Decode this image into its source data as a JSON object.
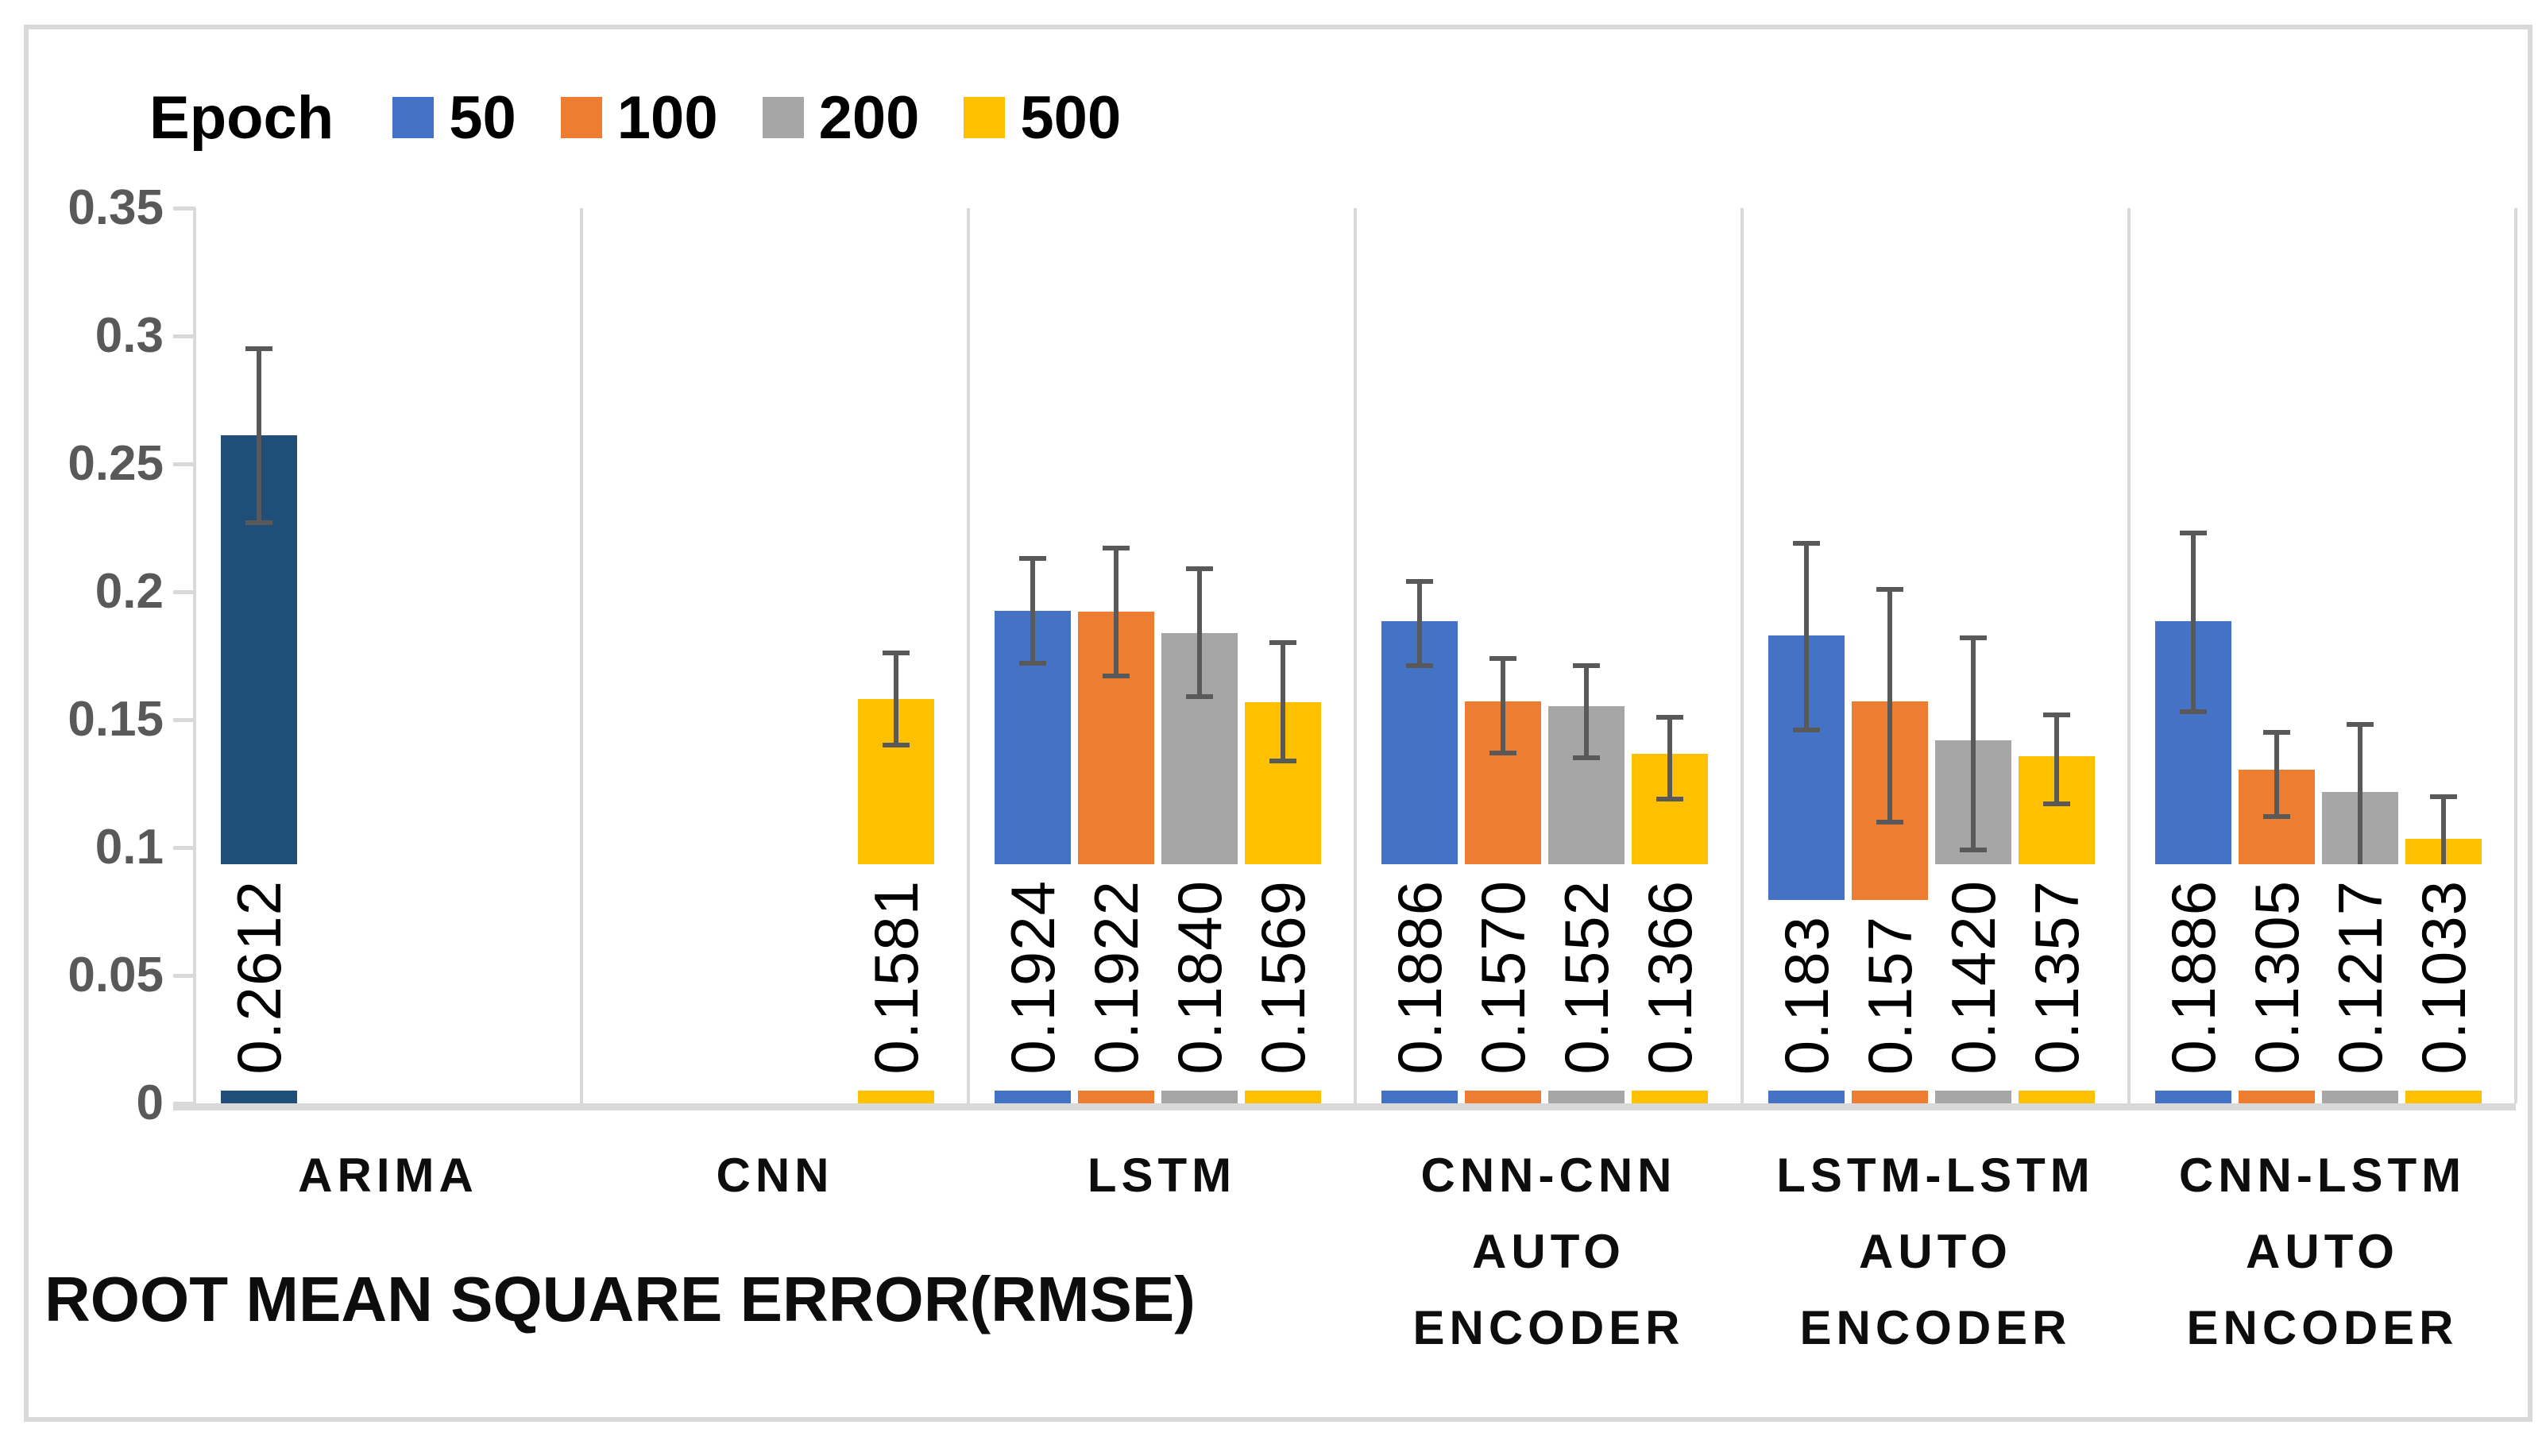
{
  "chart_data": {
    "type": "bar",
    "title": "",
    "xlabel": "ROOT MEAN SQUARE ERROR(RMSE)",
    "ylabel": "",
    "ylim": [
      0,
      0.35
    ],
    "y_tick_labels": [
      "0",
      "0.05",
      "0.1",
      "0.15",
      "0.2",
      "0.25",
      "0.3",
      "0.35"
    ],
    "grid": "no horizontal gridlines; light vertical separators between category groups",
    "legend": {
      "title": "Epoch",
      "position": "top-left",
      "entries": [
        {
          "label": "50",
          "color": "#4472C4"
        },
        {
          "label": "100",
          "color": "#ED7D31"
        },
        {
          "label": "200",
          "color": "#A6A6A6"
        },
        {
          "label": "500",
          "color": "#FFC000"
        }
      ]
    },
    "colors": {
      "arima_bar": "#1F4E79",
      "error_bar": "#595959",
      "axis_lines": "#D9D9D9",
      "tick_labels": "#595959",
      "data_labels": "#000000"
    },
    "groups": [
      {
        "category": "ARIMA",
        "label_lines": [
          "ARIMA"
        ],
        "bars": [
          {
            "slot": 0,
            "epoch": "ARIMA",
            "value": 0.2612,
            "label": "0.2612",
            "color": "#1F4E79",
            "err_low": 0.227,
            "err_high": 0.295
          }
        ]
      },
      {
        "category": "CNN",
        "label_lines": [
          "CNN"
        ],
        "bars": [
          {
            "slot": 3,
            "epoch": "500",
            "value": 0.1581,
            "label": "0.1581",
            "color": "#FFC000",
            "err_low": 0.14,
            "err_high": 0.176
          }
        ]
      },
      {
        "category": "LSTM",
        "label_lines": [
          "LSTM"
        ],
        "bars": [
          {
            "slot": 0,
            "epoch": "50",
            "value": 0.1924,
            "label": "0.1924",
            "color": "#4472C4",
            "err_low": 0.172,
            "err_high": 0.213
          },
          {
            "slot": 1,
            "epoch": "100",
            "value": 0.1922,
            "label": "0.1922",
            "color": "#ED7D31",
            "err_low": 0.167,
            "err_high": 0.217
          },
          {
            "slot": 2,
            "epoch": "200",
            "value": 0.184,
            "label": "0.1840",
            "color": "#A6A6A6",
            "err_low": 0.159,
            "err_high": 0.209
          },
          {
            "slot": 3,
            "epoch": "500",
            "value": 0.1569,
            "label": "0.1569",
            "color": "#FFC000",
            "err_low": 0.134,
            "err_high": 0.18
          }
        ]
      },
      {
        "category": "CNN-CNN AUTO ENCODER",
        "label_lines": [
          "CNN-CNN",
          "AUTO",
          "ENCODER"
        ],
        "bars": [
          {
            "slot": 0,
            "epoch": "50",
            "value": 0.1886,
            "label": "0.1886",
            "color": "#4472C4",
            "err_low": 0.171,
            "err_high": 0.204
          },
          {
            "slot": 1,
            "epoch": "100",
            "value": 0.157,
            "label": "0.1570",
            "color": "#ED7D31",
            "err_low": 0.137,
            "err_high": 0.174
          },
          {
            "slot": 2,
            "epoch": "200",
            "value": 0.1552,
            "label": "0.1552",
            "color": "#A6A6A6",
            "err_low": 0.135,
            "err_high": 0.171
          },
          {
            "slot": 3,
            "epoch": "500",
            "value": 0.1366,
            "label": "0.1366",
            "color": "#FFC000",
            "err_low": 0.119,
            "err_high": 0.151
          }
        ]
      },
      {
        "category": "LSTM-LSTM AUTO ENCODER",
        "label_lines": [
          "LSTM-LSTM",
          "AUTO",
          "ENCODER"
        ],
        "bars": [
          {
            "slot": 0,
            "epoch": "50",
            "value": 0.183,
            "label": "0.183",
            "color": "#4472C4",
            "err_low": 0.146,
            "err_high": 0.219
          },
          {
            "slot": 1,
            "epoch": "100",
            "value": 0.157,
            "label": "0.157",
            "color": "#ED7D31",
            "err_low": 0.11,
            "err_high": 0.201
          },
          {
            "slot": 2,
            "epoch": "200",
            "value": 0.142,
            "label": "0.1420",
            "color": "#A6A6A6",
            "err_low": 0.099,
            "err_high": 0.182
          },
          {
            "slot": 3,
            "epoch": "500",
            "value": 0.1357,
            "label": "0.1357",
            "color": "#FFC000",
            "err_low": 0.117,
            "err_high": 0.152
          }
        ]
      },
      {
        "category": "CNN-LSTM AUTO ENCODER",
        "label_lines": [
          "CNN-LSTM",
          "AUTO",
          "ENCODER"
        ],
        "bars": [
          {
            "slot": 0,
            "epoch": "50",
            "value": 0.1886,
            "label": "0.1886",
            "color": "#4472C4",
            "err_low": 0.153,
            "err_high": 0.223
          },
          {
            "slot": 1,
            "epoch": "100",
            "value": 0.1305,
            "label": "0.1305",
            "color": "#ED7D31",
            "err_low": 0.112,
            "err_high": 0.145
          },
          {
            "slot": 2,
            "epoch": "200",
            "value": 0.1217,
            "label": "0.1217",
            "color": "#A6A6A6",
            "err_low": 0.092,
            "err_high": 0.148
          },
          {
            "slot": 3,
            "epoch": "500",
            "value": 0.1033,
            "label": "0.1033",
            "color": "#FFC000",
            "err_low": 0.087,
            "err_high": 0.12
          }
        ]
      }
    ]
  }
}
